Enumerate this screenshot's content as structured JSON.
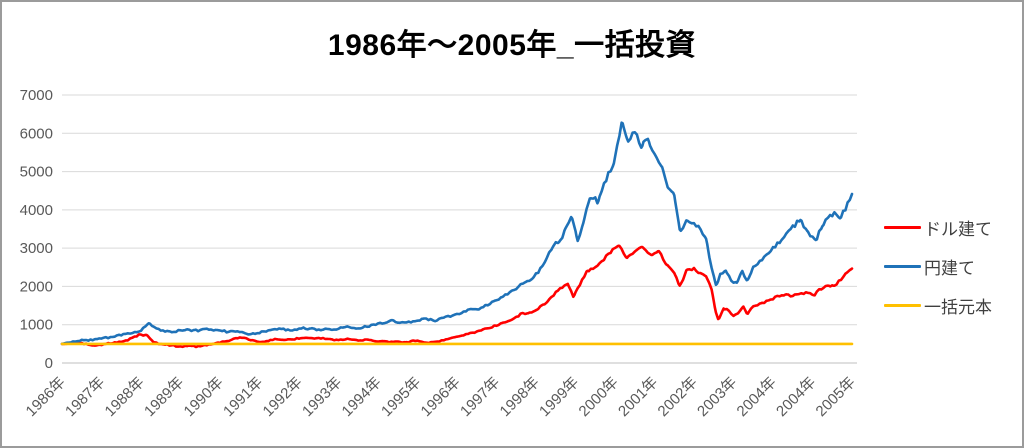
{
  "colors": {
    "background": "#FFFFFF",
    "border": "#9B9B9B",
    "grid": "#D9D9D9",
    "axis_line": "#BFBFBF",
    "tick_text": "#595959",
    "legend_text": "#3F3F3F",
    "title_text": "#000000"
  },
  "chart_data": {
    "type": "line",
    "title": "1986年～2005年_一括投資",
    "grid": true,
    "legend_position": "right",
    "x_axis": {
      "min_year": 1986,
      "max_year": 2006,
      "tick_labels": [
        "1986年",
        "1987年",
        "1988年",
        "1989年",
        "1990年",
        "1991年",
        "1992年",
        "1993年",
        "1994年",
        "1995年",
        "1996年",
        "1997年",
        "1998年",
        "1999年",
        "2000年",
        "2001年",
        "2002年",
        "2003年",
        "2004年",
        "2004年",
        "2005年"
      ]
    },
    "y_axis": {
      "min": 0,
      "max": 7000,
      "ticks": [
        0,
        1000,
        2000,
        3000,
        4000,
        5000,
        6000,
        7000
      ]
    },
    "series": [
      {
        "key": "usd",
        "name": "ドル建て",
        "color": "#FF0000",
        "jitter": 55,
        "points": [
          [
            1986.0,
            500
          ],
          [
            1986.3,
            520
          ],
          [
            1986.6,
            490
          ],
          [
            1986.85,
            470
          ],
          [
            1987.1,
            520
          ],
          [
            1987.4,
            560
          ],
          [
            1987.7,
            640
          ],
          [
            1987.95,
            730
          ],
          [
            1988.15,
            720
          ],
          [
            1988.3,
            540
          ],
          [
            1988.45,
            500
          ],
          [
            1988.7,
            470
          ],
          [
            1989.0,
            440
          ],
          [
            1989.2,
            460
          ],
          [
            1989.4,
            430
          ],
          [
            1989.6,
            470
          ],
          [
            1989.85,
            510
          ],
          [
            1990.05,
            560
          ],
          [
            1990.3,
            600
          ],
          [
            1990.5,
            640
          ],
          [
            1990.7,
            650
          ],
          [
            1990.9,
            590
          ],
          [
            1991.15,
            560
          ],
          [
            1991.4,
            610
          ],
          [
            1991.7,
            620
          ],
          [
            1992.0,
            630
          ],
          [
            1992.3,
            640
          ],
          [
            1992.6,
            620
          ],
          [
            1992.9,
            600
          ],
          [
            1993.2,
            620
          ],
          [
            1993.5,
            610
          ],
          [
            1993.8,
            620
          ],
          [
            1994.1,
            580
          ],
          [
            1994.4,
            550
          ],
          [
            1994.7,
            520
          ],
          [
            1995.0,
            560
          ],
          [
            1995.3,
            540
          ],
          [
            1995.6,
            580
          ],
          [
            1995.9,
            650
          ],
          [
            1996.2,
            720
          ],
          [
            1996.5,
            800
          ],
          [
            1996.8,
            880
          ],
          [
            1997.0,
            960
          ],
          [
            1997.2,
            1050
          ],
          [
            1997.4,
            1150
          ],
          [
            1997.6,
            1250
          ],
          [
            1997.8,
            1280
          ],
          [
            1998.0,
            1400
          ],
          [
            1998.2,
            1550
          ],
          [
            1998.4,
            1700
          ],
          [
            1998.6,
            1900
          ],
          [
            1998.8,
            2100
          ],
          [
            1998.95,
            1700
          ],
          [
            1999.1,
            2000
          ],
          [
            1999.3,
            2400
          ],
          [
            1999.5,
            2500
          ],
          [
            1999.7,
            2700
          ],
          [
            1999.9,
            2950
          ],
          [
            2000.1,
            3050
          ],
          [
            2000.3,
            2750
          ],
          [
            2000.5,
            2950
          ],
          [
            2000.7,
            3000
          ],
          [
            2000.9,
            2800
          ],
          [
            2001.1,
            2900
          ],
          [
            2001.3,
            2550
          ],
          [
            2001.5,
            2350
          ],
          [
            2001.65,
            2000
          ],
          [
            2001.8,
            2450
          ],
          [
            2002.0,
            2500
          ],
          [
            2002.15,
            2400
          ],
          [
            2002.3,
            2300
          ],
          [
            2002.45,
            1900
          ],
          [
            2002.55,
            1350
          ],
          [
            2002.62,
            1150
          ],
          [
            2002.75,
            1450
          ],
          [
            2002.88,
            1350
          ],
          [
            2003.0,
            1200
          ],
          [
            2003.12,
            1300
          ],
          [
            2003.25,
            1450
          ],
          [
            2003.35,
            1250
          ],
          [
            2003.5,
            1500
          ],
          [
            2003.7,
            1550
          ],
          [
            2003.9,
            1650
          ],
          [
            2004.1,
            1720
          ],
          [
            2004.3,
            1750
          ],
          [
            2004.5,
            1700
          ],
          [
            2004.7,
            1800
          ],
          [
            2004.9,
            1850
          ],
          [
            2005.05,
            1800
          ],
          [
            2005.2,
            1950
          ],
          [
            2005.4,
            2050
          ],
          [
            2005.55,
            2000
          ],
          [
            2005.75,
            2200
          ],
          [
            2005.9,
            2350
          ],
          [
            2006.0,
            2450
          ]
        ]
      },
      {
        "key": "jpy",
        "name": "円建て",
        "color": "#1F72B8",
        "jitter": 70,
        "points": [
          [
            1986.0,
            500
          ],
          [
            1986.3,
            540
          ],
          [
            1986.6,
            580
          ],
          [
            1986.9,
            620
          ],
          [
            1987.2,
            650
          ],
          [
            1987.5,
            690
          ],
          [
            1987.8,
            760
          ],
          [
            1988.0,
            850
          ],
          [
            1988.2,
            1010
          ],
          [
            1988.4,
            900
          ],
          [
            1988.7,
            840
          ],
          [
            1989.1,
            880
          ],
          [
            1989.5,
            830
          ],
          [
            1989.8,
            870
          ],
          [
            1990.05,
            880
          ],
          [
            1990.45,
            790
          ],
          [
            1990.8,
            780
          ],
          [
            1991.15,
            840
          ],
          [
            1991.55,
            860
          ],
          [
            1992.0,
            880
          ],
          [
            1992.4,
            910
          ],
          [
            1992.8,
            880
          ],
          [
            1993.25,
            930
          ],
          [
            1993.6,
            960
          ],
          [
            1994.0,
            1010
          ],
          [
            1994.35,
            1070
          ],
          [
            1994.75,
            1100
          ],
          [
            1995.1,
            1140
          ],
          [
            1995.45,
            1120
          ],
          [
            1995.8,
            1190
          ],
          [
            1996.2,
            1360
          ],
          [
            1996.6,
            1460
          ],
          [
            1996.9,
            1560
          ],
          [
            1997.15,
            1720
          ],
          [
            1997.4,
            1920
          ],
          [
            1997.65,
            2120
          ],
          [
            1997.9,
            2230
          ],
          [
            1998.15,
            2550
          ],
          [
            1998.4,
            2950
          ],
          [
            1998.6,
            3150
          ],
          [
            1998.75,
            3550
          ],
          [
            1998.9,
            3900
          ],
          [
            1999.05,
            3250
          ],
          [
            1999.2,
            3700
          ],
          [
            1999.37,
            4400
          ],
          [
            1999.57,
            4250
          ],
          [
            1999.77,
            4800
          ],
          [
            1999.97,
            5200
          ],
          [
            2000.18,
            6200
          ],
          [
            2000.33,
            5800
          ],
          [
            2000.5,
            6050
          ],
          [
            2000.68,
            5600
          ],
          [
            2000.84,
            5850
          ],
          [
            2001.0,
            5400
          ],
          [
            2001.19,
            5200
          ],
          [
            2001.34,
            4650
          ],
          [
            2001.49,
            4350
          ],
          [
            2001.65,
            3350
          ],
          [
            2001.8,
            3800
          ],
          [
            2002.0,
            3700
          ],
          [
            2002.15,
            3500
          ],
          [
            2002.3,
            3300
          ],
          [
            2002.46,
            2500
          ],
          [
            2002.56,
            2050
          ],
          [
            2002.66,
            2350
          ],
          [
            2002.8,
            2500
          ],
          [
            2002.94,
            2200
          ],
          [
            2003.09,
            2100
          ],
          [
            2003.22,
            2400
          ],
          [
            2003.34,
            2100
          ],
          [
            2003.49,
            2500
          ],
          [
            2003.67,
            2700
          ],
          [
            2003.87,
            2900
          ],
          [
            2004.05,
            3000
          ],
          [
            2004.2,
            3200
          ],
          [
            2004.4,
            3450
          ],
          [
            2004.6,
            3600
          ],
          [
            2004.7,
            3700
          ],
          [
            2004.85,
            3500
          ],
          [
            2005.0,
            3400
          ],
          [
            2005.1,
            3300
          ],
          [
            2005.25,
            3650
          ],
          [
            2005.4,
            3800
          ],
          [
            2005.55,
            3950
          ],
          [
            2005.7,
            3850
          ],
          [
            2005.85,
            4050
          ],
          [
            2006.0,
            4300
          ]
        ]
      },
      {
        "key": "principal",
        "name": "一括元本",
        "color": "#FFC000",
        "jitter": 0,
        "points": [
          [
            1986.0,
            500
          ],
          [
            2006.0,
            500
          ]
        ]
      }
    ]
  }
}
